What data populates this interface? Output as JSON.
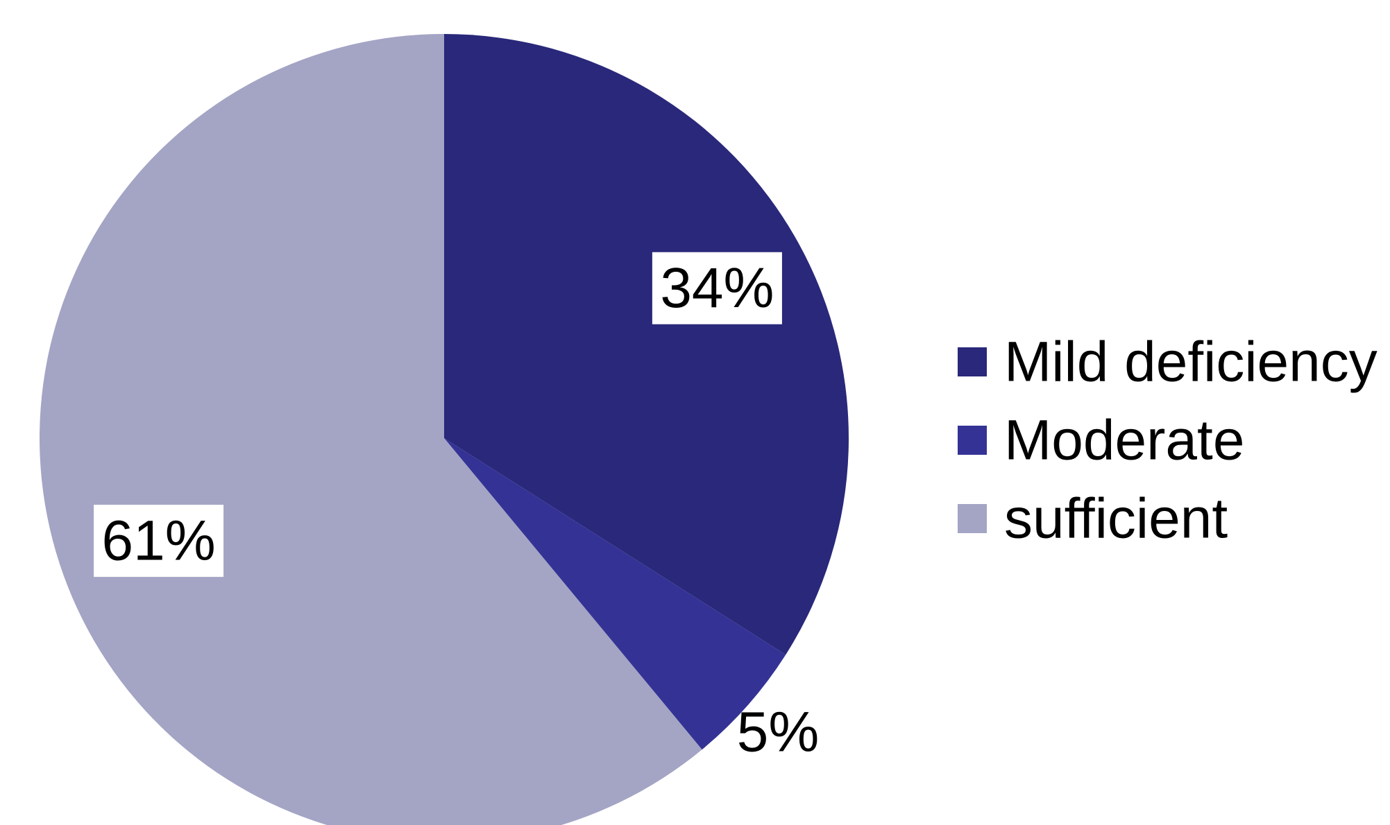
{
  "chart_data": {
    "type": "pie",
    "slices": [
      {
        "label": "Mild deficiency",
        "value": 34,
        "value_label": "34%",
        "color": "#29287a"
      },
      {
        "label": "Moderate",
        "value": 5,
        "value_label": "5%",
        "color": "#343395"
      },
      {
        "label": "sufficient",
        "value": 61,
        "value_label": "61%",
        "color": "#a4a4c5"
      }
    ],
    "start_angle": "12 o'clock",
    "direction": "clockwise",
    "legend": {
      "position": "right",
      "entries": [
        "Mild deficiency",
        "Moderate",
        "sufficient"
      ]
    }
  }
}
